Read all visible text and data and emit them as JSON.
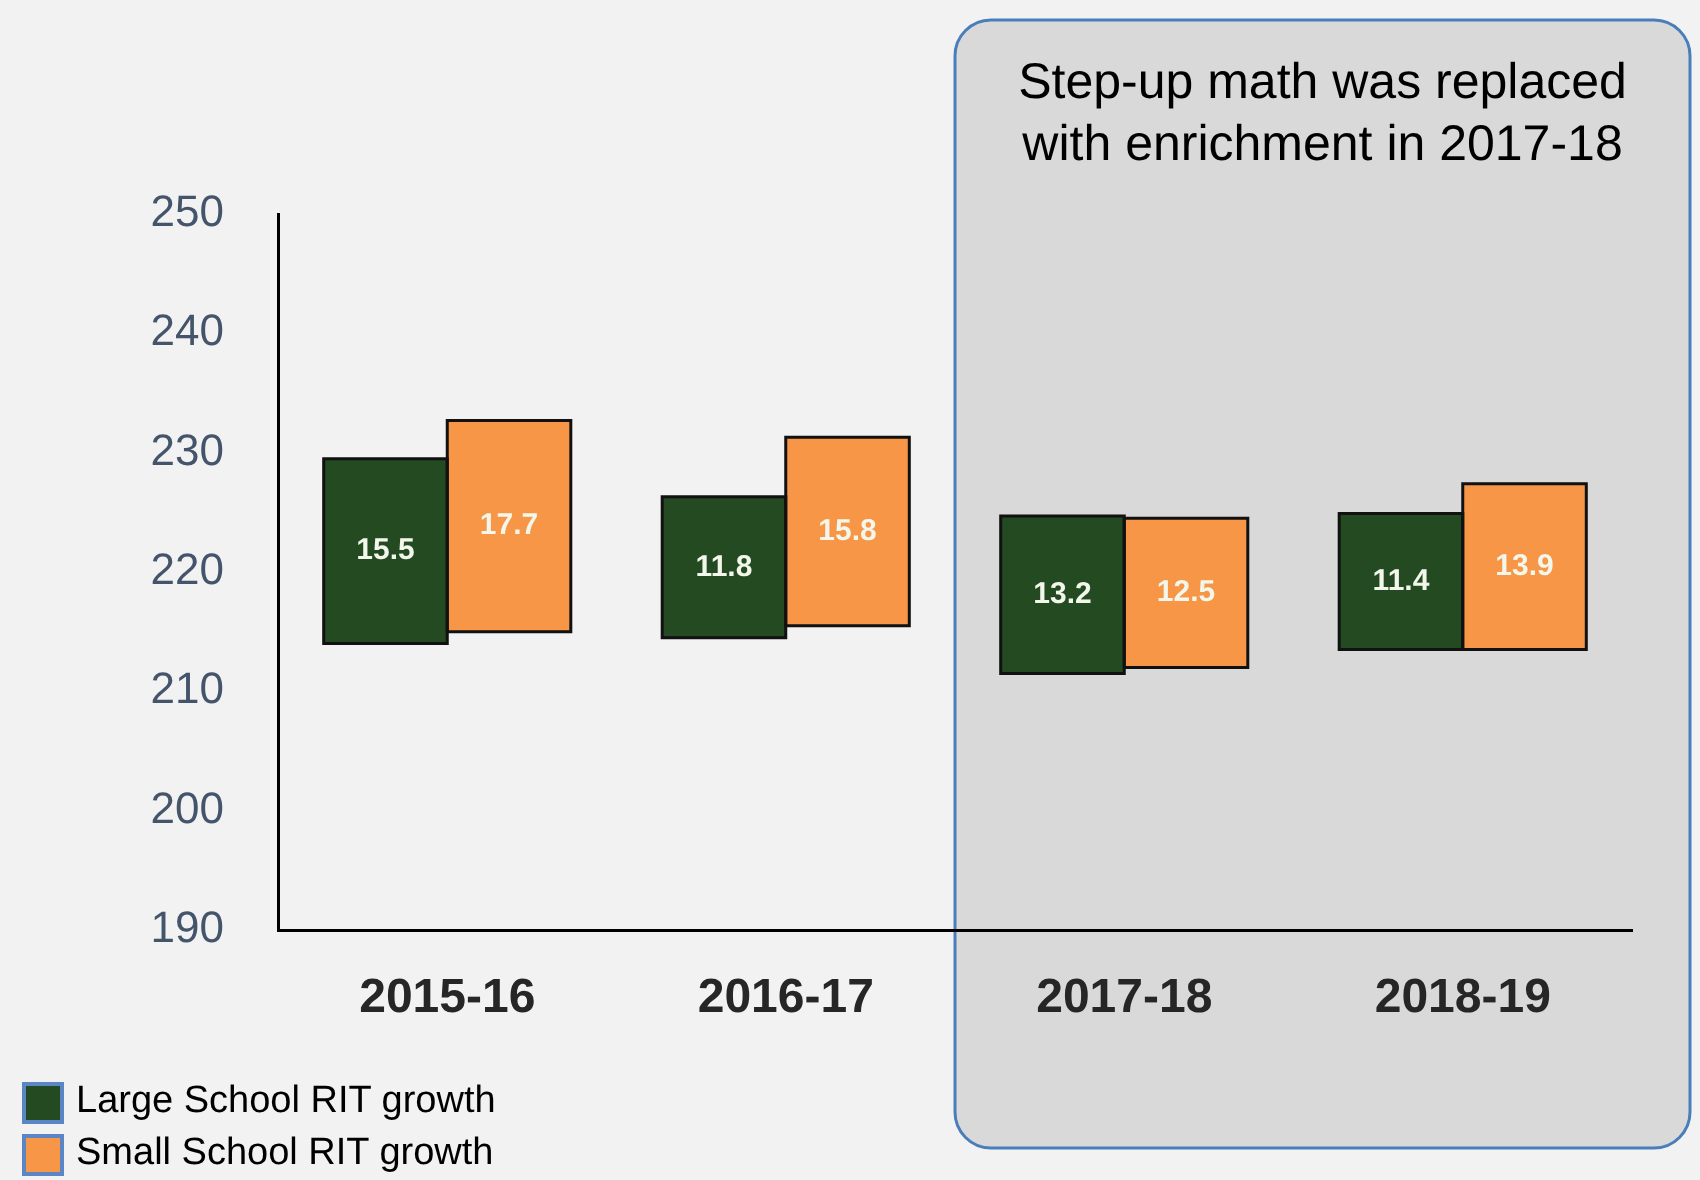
{
  "chart_data": {
    "type": "bar",
    "categories": [
      "2015-16",
      "2016-17",
      "2017-18",
      "2018-19"
    ],
    "series": [
      {
        "name": "Large School RIT growth",
        "color": "#244a22",
        "values": [
          15.5,
          11.8,
          13.2,
          11.4
        ],
        "base": [
          214,
          214.5,
          211.5,
          213.5
        ]
      },
      {
        "name": "Small School RIT growth",
        "color": "#f79646",
        "values": [
          17.7,
          15.8,
          12.5,
          13.9
        ],
        "base": [
          215,
          215.5,
          212,
          213.5
        ]
      }
    ],
    "ylim": [
      190,
      250
    ],
    "yticks": [
      190,
      200,
      210,
      220,
      230,
      240,
      250
    ],
    "data_labels": true,
    "grid": false,
    "legend": "bottom left",
    "bands": [
      {
        "axis": "x",
        "from": "2017-18",
        "to": "2018-19",
        "label": "Step-up math was replaced with enrichment in 2017-18",
        "color": "#d9d9d9"
      }
    ]
  }
}
